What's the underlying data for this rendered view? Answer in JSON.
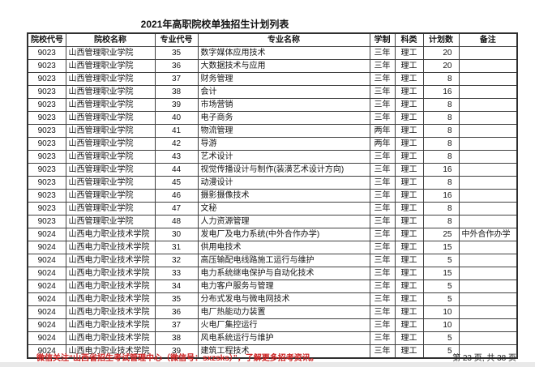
{
  "title": "2021年高职院校单独招生计划列表",
  "colors": {
    "notice_red": "#cc2222",
    "text": "#141414",
    "border": "#404040",
    "page_bg": "#ffffff"
  },
  "table": {
    "headers": [
      "院校代号",
      "院校名称",
      "专业代号",
      "专业名称",
      "学制",
      "科类",
      "计划数",
      "备注"
    ],
    "field_names": [
      "college-code",
      "college-name",
      "major-code",
      "major-name",
      "duration",
      "category",
      "plan-count",
      "remark"
    ],
    "rows": [
      [
        "9023",
        "山西管理职业学院",
        "35",
        "数字媒体应用技术",
        "三年",
        "理工",
        "20",
        ""
      ],
      [
        "9023",
        "山西管理职业学院",
        "36",
        "大数据技术与应用",
        "三年",
        "理工",
        "20",
        ""
      ],
      [
        "9023",
        "山西管理职业学院",
        "37",
        "财务管理",
        "三年",
        "理工",
        "8",
        ""
      ],
      [
        "9023",
        "山西管理职业学院",
        "38",
        "会计",
        "三年",
        "理工",
        "16",
        ""
      ],
      [
        "9023",
        "山西管理职业学院",
        "39",
        "市场营销",
        "三年",
        "理工",
        "8",
        ""
      ],
      [
        "9023",
        "山西管理职业学院",
        "40",
        "电子商务",
        "三年",
        "理工",
        "8",
        ""
      ],
      [
        "9023",
        "山西管理职业学院",
        "41",
        "物流管理",
        "两年",
        "理工",
        "8",
        ""
      ],
      [
        "9023",
        "山西管理职业学院",
        "42",
        "导游",
        "两年",
        "理工",
        "8",
        ""
      ],
      [
        "9023",
        "山西管理职业学院",
        "43",
        "艺术设计",
        "三年",
        "理工",
        "8",
        ""
      ],
      [
        "9023",
        "山西管理职业学院",
        "44",
        "视觉传播设计与制作(装潢艺术设计方向)",
        "三年",
        "理工",
        "16",
        ""
      ],
      [
        "9023",
        "山西管理职业学院",
        "45",
        "动漫设计",
        "三年",
        "理工",
        "8",
        ""
      ],
      [
        "9023",
        "山西管理职业学院",
        "46",
        "摄影摄像技术",
        "三年",
        "理工",
        "16",
        ""
      ],
      [
        "9023",
        "山西管理职业学院",
        "47",
        "文秘",
        "三年",
        "理工",
        "8",
        ""
      ],
      [
        "9023",
        "山西管理职业学院",
        "48",
        "人力资源管理",
        "三年",
        "理工",
        "8",
        ""
      ],
      [
        "9024",
        "山西电力职业技术学院",
        "30",
        "发电厂及电力系统(中外合作办学)",
        "三年",
        "理工",
        "25",
        "中外合作办学"
      ],
      [
        "9024",
        "山西电力职业技术学院",
        "31",
        "供用电技术",
        "三年",
        "理工",
        "15",
        ""
      ],
      [
        "9024",
        "山西电力职业技术学院",
        "32",
        "高压输配电线路施工运行与维护",
        "三年",
        "理工",
        "5",
        ""
      ],
      [
        "9024",
        "山西电力职业技术学院",
        "33",
        "电力系统继电保护与自动化技术",
        "三年",
        "理工",
        "15",
        ""
      ],
      [
        "9024",
        "山西电力职业技术学院",
        "34",
        "电力客户服务与管理",
        "三年",
        "理工",
        "5",
        ""
      ],
      [
        "9024",
        "山西电力职业技术学院",
        "35",
        "分布式发电与微电网技术",
        "三年",
        "理工",
        "5",
        ""
      ],
      [
        "9024",
        "山西电力职业技术学院",
        "36",
        "电厂热能动力装置",
        "三年",
        "理工",
        "10",
        ""
      ],
      [
        "9024",
        "山西电力职业技术学院",
        "37",
        "火电厂集控运行",
        "三年",
        "理工",
        "10",
        ""
      ],
      [
        "9024",
        "山西电力职业技术学院",
        "38",
        "风电系统运行与维护",
        "三年",
        "理工",
        "5",
        ""
      ],
      [
        "9024",
        "山西电力职业技术学院",
        "39",
        "建筑工程技术",
        "三年",
        "理工",
        "5",
        ""
      ]
    ]
  },
  "footer": {
    "notice": "微信关注“山西省招生考试管理中心（微信号：sxzsks）”，了解更多招考资讯。",
    "page_info": "第 23 页, 共 38 页"
  }
}
